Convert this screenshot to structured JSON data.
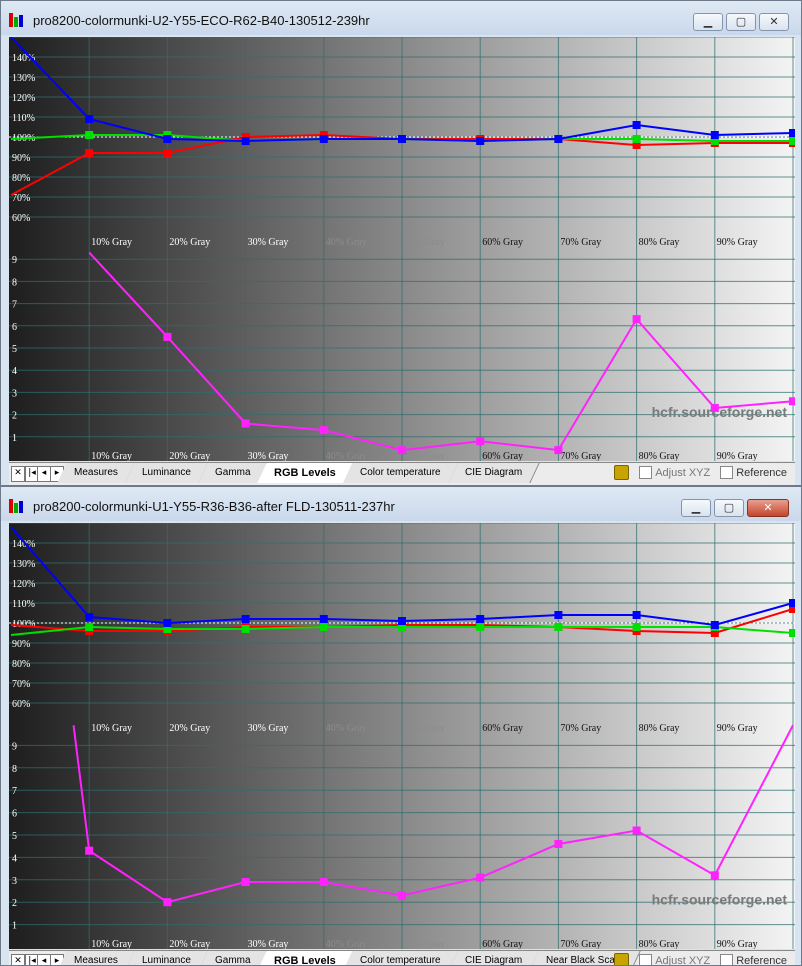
{
  "windows": [
    {
      "title": "pro8200-colormunki-U2-Y55-ECO-R62-B40-130512-239hr",
      "rgb_y_labels": [
        "140%",
        "130%",
        "120%",
        "110%",
        "100%",
        "90%",
        "80%",
        "70%",
        "60%"
      ],
      "de_y_labels": [
        "9",
        "8",
        "7",
        "6",
        "5",
        "4",
        "3",
        "2",
        "1"
      ],
      "gray_labels": [
        "10% Gray",
        "20% Gray",
        "30% Gray",
        "40% Gray",
        "50% Gray",
        "60% Gray",
        "70% Gray",
        "80% Gray",
        "90% Gray"
      ],
      "watermark": "hcfr.sourceforge.net",
      "tabs": [
        "Measures",
        "Luminance",
        "Gamma",
        "RGB Levels",
        "Color temperature",
        "CIE Diagram"
      ],
      "active_tab": "RGB Levels",
      "opt_adjust": "Adjust XYZ",
      "opt_reference": "Reference",
      "chart_data": {
        "type": "line",
        "x": [
          0,
          10,
          20,
          30,
          40,
          50,
          60,
          70,
          80,
          90,
          100
        ],
        "rgb_ylim": [
          55,
          150
        ],
        "series": [
          {
            "name": "red",
            "color": "#ff0000",
            "values": [
              71,
              92,
              92,
              100,
              101,
              99,
              99,
              99,
              96,
              97,
              97
            ]
          },
          {
            "name": "green",
            "color": "#00e000",
            "values": [
              99,
              101,
              101,
              98,
              99,
              99,
              98,
              99,
              99,
              98,
              98
            ]
          },
          {
            "name": "blue",
            "color": "#0000ff",
            "values": [
              150,
              109,
              99,
              98,
              99,
              99,
              98,
              99,
              106,
              101,
              102
            ]
          }
        ],
        "de_ylim": [
          0,
          10
        ],
        "de_x": [
          10,
          20,
          30,
          40,
          50,
          60,
          70,
          80,
          90,
          100
        ],
        "delta_e": [
          9.3,
          5.5,
          1.6,
          1.3,
          0.4,
          0.8,
          0.4,
          6.3,
          2.3,
          2.6
        ]
      }
    },
    {
      "title": "pro8200-colormunki-U1-Y55-R36-B36-after FLD-130511-237hr",
      "rgb_y_labels": [
        "140%",
        "130%",
        "120%",
        "110%",
        "100%",
        "90%",
        "80%",
        "70%",
        "60%"
      ],
      "de_y_labels": [
        "9",
        "8",
        "7",
        "6",
        "5",
        "4",
        "3",
        "2",
        "1"
      ],
      "gray_labels": [
        "10% Gray",
        "20% Gray",
        "30% Gray",
        "40% Gray",
        "50% Gray",
        "60% Gray",
        "70% Gray",
        "80% Gray",
        "90% Gray"
      ],
      "watermark": "hcfr.sourceforge.net",
      "tabs": [
        "Measures",
        "Luminance",
        "Gamma",
        "RGB Levels",
        "Color temperature",
        "CIE Diagram",
        "Near Black Scale"
      ],
      "active_tab": "RGB Levels",
      "opt_adjust": "Adjust XYZ",
      "opt_reference": "Reference",
      "chart_data": {
        "type": "line",
        "x": [
          0,
          10,
          20,
          30,
          40,
          50,
          60,
          70,
          80,
          90,
          100
        ],
        "rgb_ylim": [
          55,
          150
        ],
        "series": [
          {
            "name": "red",
            "color": "#ff0000",
            "values": [
              99,
              96,
              96,
              98,
              98,
              99,
              99,
              98,
              96,
              95,
              107
            ]
          },
          {
            "name": "green",
            "color": "#00e000",
            "values": [
              94,
              98,
              97,
              97,
              98,
              98,
              98,
              98,
              98,
              98,
              95
            ]
          },
          {
            "name": "blue",
            "color": "#0000ff",
            "values": [
              148,
              103,
              100,
              102,
              102,
              101,
              102,
              104,
              104,
              99,
              110
            ]
          }
        ],
        "de_ylim": [
          0,
          10
        ],
        "de_x": [
          8,
          10,
          20,
          30,
          40,
          50,
          60,
          70,
          80,
          90,
          100
        ],
        "delta_e": [
          9.9,
          4.3,
          2.0,
          2.9,
          2.9,
          2.3,
          3.1,
          4.6,
          5.2,
          3.2,
          9.9
        ]
      }
    }
  ]
}
